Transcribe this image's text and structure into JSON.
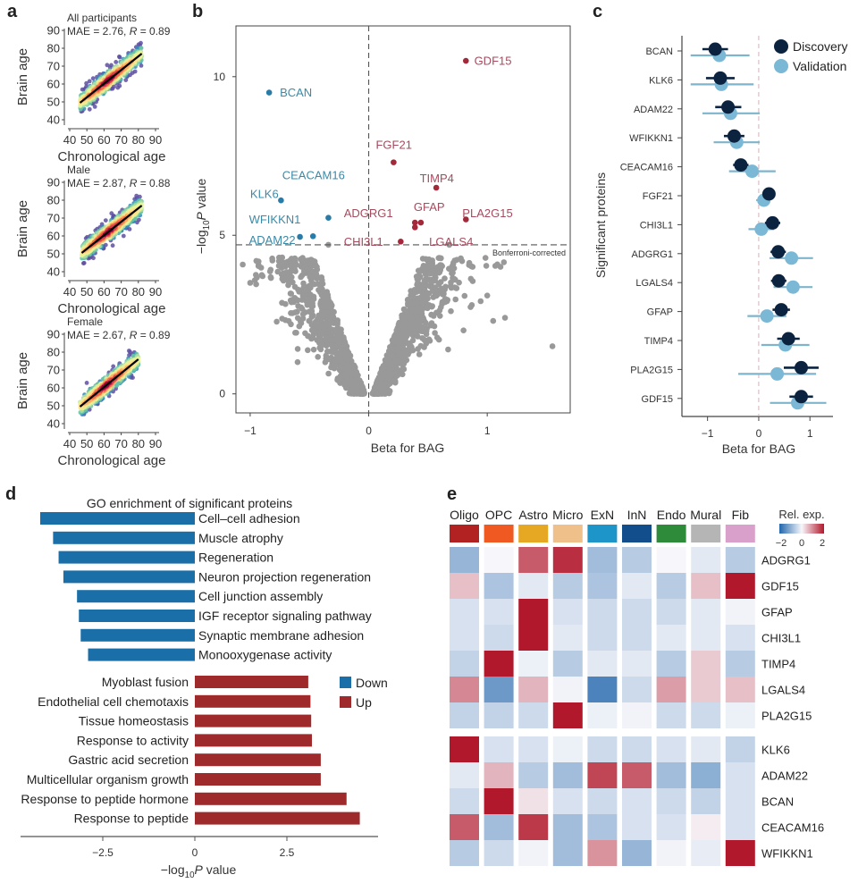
{
  "panels": {
    "a": "a",
    "b": "b",
    "c": "c",
    "d": "d",
    "e": "e"
  },
  "chart_data": [
    {
      "id": "a",
      "type": "scatter",
      "subplots": [
        {
          "title": "All participants",
          "stats": "MAE = 2.76, R = 0.89",
          "mae": "2.76",
          "r": "0.89",
          "fit": {
            "x": [
              46,
              82
            ],
            "y": [
              49.5,
              77
            ]
          }
        },
        {
          "title": "Male",
          "stats": "MAE = 2.87, R = 0.88",
          "mae": "2.87",
          "r": "0.88",
          "fit": {
            "x": [
              47,
              82
            ],
            "y": [
              50.5,
              77
            ]
          }
        },
        {
          "title": "Female",
          "stats": "MAE = 2.67, R = 0.89",
          "mae": "2.67",
          "r": "0.89",
          "fit": {
            "x": [
              46,
              80
            ],
            "y": [
              49.5,
              76
            ]
          }
        }
      ],
      "xlabel": "Chronological age",
      "ylabel": "Brain age",
      "xticks": [
        40,
        50,
        60,
        70,
        80,
        90
      ],
      "yticks": [
        40,
        50,
        60,
        70,
        80,
        90
      ],
      "xlim": [
        40,
        90
      ],
      "ylim": [
        40,
        90
      ],
      "mae_label": "MAE = ",
      "r_label": "R",
      "colormap": [
        "#5e4fa2",
        "#3288bd",
        "#66c2a5",
        "#abdda4",
        "#e6f598",
        "#fee08b",
        "#fdae61",
        "#f46d43",
        "#d53e4f",
        "#9e0142"
      ]
    },
    {
      "id": "b",
      "type": "scatter",
      "xlabel": "Beta for BAG",
      "ylabel": "−log10P value",
      "ylabel_parts": {
        "pre": "−log",
        "sub": "10",
        "ital": "P",
        "post": " value"
      },
      "xticks": [
        -1,
        0,
        1
      ],
      "xtick_labels": [
        "−1",
        "0",
        "1"
      ],
      "yticks": [
        0,
        5,
        10
      ],
      "xlim": [
        -1.12,
        1.7
      ],
      "ylim": [
        -0.6,
        11.6
      ],
      "threshold": 4.7,
      "threshold_label": "Bonferroni-corrected",
      "colors": {
        "down": "#2a7ca8",
        "up": "#a3283a",
        "ns": "#999999"
      },
      "significant": [
        {
          "name": "GDF15",
          "beta": 0.82,
          "logp": 10.5,
          "dir": "up"
        },
        {
          "name": "BCAN",
          "beta": -0.84,
          "logp": 9.5,
          "dir": "down"
        },
        {
          "name": "FGF21",
          "beta": 0.21,
          "logp": 7.3,
          "dir": "up"
        },
        {
          "name": "TIMP4",
          "beta": 0.57,
          "logp": 6.5,
          "dir": "up"
        },
        {
          "name": "KLK6",
          "beta": -0.74,
          "logp": 6.1,
          "dir": "down"
        },
        {
          "name": "CEACAM16",
          "beta": -0.34,
          "logp": 5.55,
          "dir": "down"
        },
        {
          "name": "PLA2G15",
          "beta": 0.82,
          "logp": 5.5,
          "dir": "up"
        },
        {
          "name": "GFAP",
          "beta": 0.44,
          "logp": 5.4,
          "dir": "up"
        },
        {
          "name": "LGALS4",
          "beta": 0.39,
          "logp": 5.25,
          "dir": "up"
        },
        {
          "name": "ADGRG1",
          "beta": 0.39,
          "logp": 5.4,
          "dir": "up"
        },
        {
          "name": "ADAM22",
          "beta": -0.58,
          "logp": 4.95,
          "dir": "down"
        },
        {
          "name": "WFIKKN1",
          "beta": -0.47,
          "logp": 4.97,
          "dir": "down"
        },
        {
          "name": "CHI3L1",
          "beta": 0.27,
          "logp": 4.8,
          "dir": "up"
        }
      ],
      "labels": [
        {
          "name": "GDF15",
          "lx": 0.89,
          "ly": 10.5,
          "dir": "up"
        },
        {
          "name": "BCAN",
          "lx": -0.75,
          "ly": 9.5,
          "dir": "down"
        },
        {
          "name": "FGF21",
          "lx": 0.06,
          "ly": 7.85,
          "dir": "up"
        },
        {
          "name": "CEACAM16",
          "lx": -0.73,
          "ly": 6.9,
          "dir": "down"
        },
        {
          "name": "TIMP4",
          "lx": 0.43,
          "ly": 6.8,
          "dir": "up"
        },
        {
          "name": "KLK6",
          "lx": -1.0,
          "ly": 6.3,
          "dir": "down"
        },
        {
          "name": "GFAP",
          "lx": 0.38,
          "ly": 5.9,
          "dir": "up"
        },
        {
          "name": "ADGRG1",
          "lx": -0.21,
          "ly": 5.7,
          "dir": "up"
        },
        {
          "name": "PLA2G15",
          "lx": 0.79,
          "ly": 5.7,
          "dir": "up"
        },
        {
          "name": "WFIKKN1",
          "lx": -1.01,
          "ly": 5.5,
          "dir": "down"
        },
        {
          "name": "ADAM22",
          "lx": -1.01,
          "ly": 4.85,
          "dir": "down"
        },
        {
          "name": "CHI3L1",
          "lx": -0.21,
          "ly": 4.8,
          "dir": "up"
        },
        {
          "name": "LGALS4",
          "lx": 0.51,
          "ly": 4.8,
          "dir": "up"
        }
      ]
    },
    {
      "id": "c",
      "type": "forest",
      "xlabel": "Beta for BAG",
      "ylabel": "Significant proteins",
      "xticks": [
        -1,
        0,
        1
      ],
      "xtick_labels": [
        "−1",
        "0",
        "1"
      ],
      "xlim": [
        -1.5,
        1.45
      ],
      "legend": [
        {
          "name": "Discovery",
          "color": "#0c2340"
        },
        {
          "name": "Validation",
          "color": "#7bb8d6"
        }
      ],
      "legend_position": "top-right",
      "rows": [
        {
          "protein": "BCAN",
          "disc": [
            -0.85,
            -1.1,
            -0.6
          ],
          "val": [
            -0.77,
            -1.33,
            -0.18
          ]
        },
        {
          "protein": "KLK6",
          "disc": [
            -0.75,
            -1.03,
            -0.47
          ],
          "val": [
            -0.73,
            -1.33,
            -0.1
          ]
        },
        {
          "protein": "ADAM22",
          "disc": [
            -0.6,
            -0.85,
            -0.34
          ],
          "val": [
            -0.55,
            -1.1,
            0.02
          ]
        },
        {
          "protein": "WFIKKN1",
          "disc": [
            -0.48,
            -0.68,
            -0.28
          ],
          "val": [
            -0.43,
            -0.88,
            0.02
          ]
        },
        {
          "protein": "CEACAM16",
          "disc": [
            -0.35,
            -0.5,
            -0.2
          ],
          "val": [
            -0.13,
            -0.58,
            0.33
          ]
        },
        {
          "protein": "FGF21",
          "disc": [
            0.2,
            0.08,
            0.32
          ],
          "val": [
            0.1,
            -0.05,
            0.2
          ]
        },
        {
          "protein": "CHI3L1",
          "disc": [
            0.27,
            0.12,
            0.42
          ],
          "val": [
            0.05,
            -0.2,
            0.3
          ]
        },
        {
          "protein": "ADGRG1",
          "disc": [
            0.38,
            0.23,
            0.53
          ],
          "val": [
            0.64,
            0.21,
            1.06
          ]
        },
        {
          "protein": "LGALS4",
          "disc": [
            0.39,
            0.24,
            0.54
          ],
          "val": [
            0.67,
            0.29,
            1.05
          ]
        },
        {
          "protein": "GFAP",
          "disc": [
            0.44,
            0.27,
            0.61
          ],
          "val": [
            0.16,
            -0.22,
            0.54
          ]
        },
        {
          "protein": "TIMP4",
          "disc": [
            0.58,
            0.36,
            0.8
          ],
          "val": [
            0.52,
            0.05,
            0.99
          ]
        },
        {
          "protein": "PLA2G15",
          "disc": [
            0.83,
            0.49,
            1.17
          ],
          "val": [
            0.36,
            -0.4,
            1.12
          ]
        },
        {
          "protein": "GDF15",
          "disc": [
            0.83,
            0.6,
            1.06
          ],
          "val": [
            0.76,
            0.22,
            1.32
          ]
        }
      ]
    },
    {
      "id": "d",
      "type": "bar",
      "title": "GO enrichment of significant proteins",
      "xlabel": "−log10P value",
      "xlabel_parts": {
        "pre": "−log",
        "sub": "10",
        "ital": "P",
        "post": " value"
      },
      "xticks": [
        -2.5,
        0,
        2.5
      ],
      "xtick_labels": [
        "−2.5",
        "0",
        "2.5"
      ],
      "xlim": [
        -4.7,
        4.9
      ],
      "legend": [
        {
          "name": "Down",
          "color": "#1b6fa8"
        },
        {
          "name": "Up",
          "color": "#9e2a2b"
        }
      ],
      "legend_position": "right",
      "down": [
        {
          "term": "Cell–cell adhesion",
          "value": -4.2
        },
        {
          "term": "Muscle atrophy",
          "value": -3.85
        },
        {
          "term": "Regeneration",
          "value": -3.7
        },
        {
          "term": "Neuron projection regeneration",
          "value": -3.57
        },
        {
          "term": "Cell junction assembly",
          "value": -3.2
        },
        {
          "term": "IGF receptor signaling pathway",
          "value": -3.15
        },
        {
          "term": "Synaptic membrane adhesion",
          "value": -3.1
        },
        {
          "term": "Monooxygenase activity",
          "value": -2.9
        }
      ],
      "up": [
        {
          "term": "Myoblast fusion",
          "value": 3.08
        },
        {
          "term": "Endothelial cell chemotaxis",
          "value": 3.14
        },
        {
          "term": "Tissue homeostasis",
          "value": 3.16
        },
        {
          "term": "Response to activity",
          "value": 3.18
        },
        {
          "term": "Gastric acid secretion",
          "value": 3.42
        },
        {
          "term": "Multicellular organism growth",
          "value": 3.42
        },
        {
          "term": "Response to peptide hormone",
          "value": 4.12
        },
        {
          "term": "Response to peptide",
          "value": 4.48
        }
      ]
    },
    {
      "id": "e",
      "type": "heatmap",
      "columns": [
        "Oligo",
        "OPC",
        "Astro",
        "Micro",
        "ExN",
        "InN",
        "Endo",
        "Mural",
        "Fib"
      ],
      "column_colors": [
        "#b22222",
        "#f05a22",
        "#e6a722",
        "#f0c08a",
        "#1d95c9",
        "#124e8c",
        "#2e8b3a",
        "#b5b5b5",
        "#d9a0cc"
      ],
      "colorbar_title": "Rel. exp.",
      "colorbar_ticks": [
        "−2",
        "0",
        "2"
      ],
      "vmin": -2,
      "vmax": 2,
      "row_groups": [
        [
          "ADGRG1",
          "GDF15",
          "GFAP",
          "CHI3L1",
          "TIMP4",
          "LGALS4",
          "PLA2G15"
        ],
        [
          "KLK6",
          "ADAM22",
          "BCAN",
          "CEACAM16",
          "WFIKKN1"
        ]
      ],
      "rows": [
        {
          "protein": "ADGRG1",
          "values": [
            -0.9,
            0.0,
            1.4,
            1.8,
            -0.8,
            -0.6,
            0.0,
            -0.2,
            -0.6
          ]
        },
        {
          "protein": "GDF15",
          "values": [
            0.5,
            -0.7,
            -0.2,
            -0.6,
            -0.7,
            -0.2,
            -0.6,
            0.5,
            2.0
          ]
        },
        {
          "protein": "GFAP",
          "values": [
            -0.3,
            -0.3,
            2.0,
            -0.3,
            -0.4,
            -0.4,
            -0.4,
            -0.2,
            -0.05
          ]
        },
        {
          "protein": "CHI3L1",
          "values": [
            -0.3,
            -0.4,
            2.0,
            -0.2,
            -0.4,
            -0.4,
            -0.2,
            -0.2,
            -0.3
          ]
        },
        {
          "protein": "TIMP4",
          "values": [
            -0.5,
            2.0,
            -0.1,
            -0.6,
            -0.2,
            -0.2,
            -0.6,
            0.4,
            -0.6
          ]
        },
        {
          "protein": "LGALS4",
          "values": [
            1.0,
            -1.3,
            0.6,
            -0.05,
            -1.6,
            -0.4,
            0.8,
            0.4,
            0.5
          ]
        },
        {
          "protein": "PLA2G15",
          "values": [
            -0.5,
            -0.5,
            -0.4,
            2.0,
            -0.1,
            -0.05,
            -0.4,
            -0.4,
            -0.1
          ]
        },
        {
          "protein": "KLK6",
          "values": [
            2.0,
            -0.3,
            -0.3,
            -0.1,
            -0.4,
            -0.4,
            -0.3,
            -0.2,
            -0.5
          ]
        },
        {
          "protein": "ADAM22",
          "values": [
            -0.2,
            0.6,
            -0.6,
            -0.8,
            1.6,
            1.4,
            -0.8,
            -1.0,
            -0.3
          ]
        },
        {
          "protein": "BCAN",
          "values": [
            -0.4,
            2.0,
            0.2,
            -0.3,
            -0.4,
            -0.3,
            -0.4,
            -0.5,
            -0.3
          ]
        },
        {
          "protein": "CEACAM16",
          "values": [
            1.4,
            -0.8,
            1.7,
            -0.8,
            -0.7,
            -0.3,
            -0.3,
            0.1,
            -0.3
          ]
        },
        {
          "protein": "WFIKKN1",
          "values": [
            -0.6,
            -0.4,
            -0.05,
            -0.8,
            0.9,
            -0.9,
            -0.05,
            -0.15,
            2.0
          ]
        }
      ]
    }
  ]
}
